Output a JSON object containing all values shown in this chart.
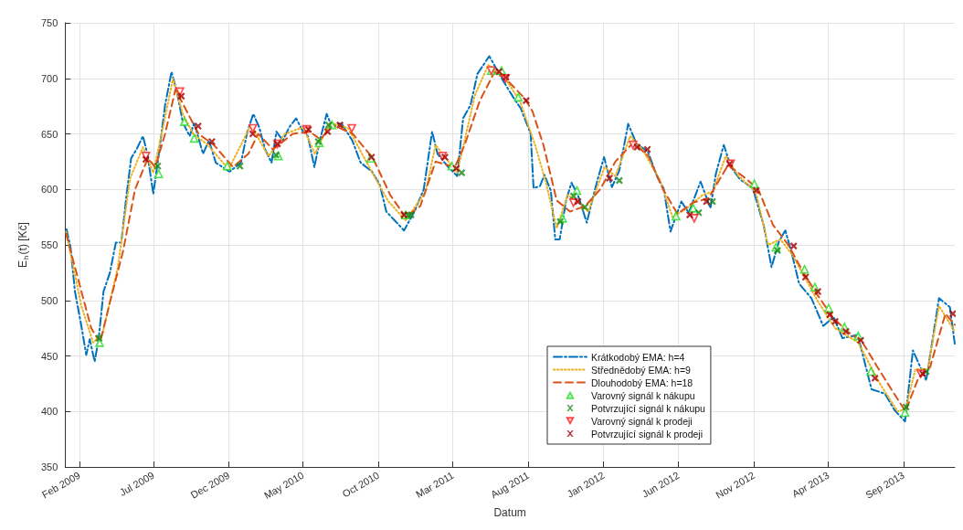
{
  "chart_data": {
    "type": "line",
    "xlabel": "Datum",
    "ylabel": "E$_{h}$(t) [Kč]",
    "xlim": [
      "2009-01-03",
      "2013-12-14"
    ],
    "ylim": [
      350,
      750
    ],
    "yticks": [
      350,
      400,
      450,
      500,
      550,
      600,
      650,
      700,
      750
    ],
    "xticks": [
      {
        "value": "2009-02-01",
        "label": "Feb 2009"
      },
      {
        "value": "2009-07-01",
        "label": "Jul 2009"
      },
      {
        "value": "2009-12-01",
        "label": "Dec 2009"
      },
      {
        "value": "2010-05-01",
        "label": "May 2010"
      },
      {
        "value": "2010-10-01",
        "label": "Oct 2010"
      },
      {
        "value": "2011-03-01",
        "label": "Mar 2011"
      },
      {
        "value": "2011-08-01",
        "label": "Aug 2011"
      },
      {
        "value": "2012-01-01",
        "label": "Jan 2012"
      },
      {
        "value": "2012-06-01",
        "label": "Jun 2012"
      },
      {
        "value": "2012-11-01",
        "label": "Nov 2012"
      },
      {
        "value": "2013-04-01",
        "label": "Apr 2013"
      },
      {
        "value": "2013-09-01",
        "label": "Sep 2013"
      }
    ],
    "grid": true,
    "legend": "bottom",
    "marker": "none",
    "series": [
      {
        "name": "Krátkodobý EMA: h=4",
        "line_style": "dashdot",
        "color": "#0072bd",
        "x": [
          "2009-01-06",
          "2009-01-14",
          "2009-01-23",
          "2009-02-05",
          "2009-02-15",
          "2009-02-22",
          "2009-03-04",
          "2009-03-12",
          "2009-03-22",
          "2009-04-04",
          "2009-04-16",
          "2009-04-27",
          "2009-05-08",
          "2009-05-17",
          "2009-05-28",
          "2009-06-10",
          "2009-06-19",
          "2009-07-01",
          "2009-07-10",
          "2009-07-25",
          "2009-08-07",
          "2009-08-18",
          "2009-08-30",
          "2009-09-13",
          "2009-09-22",
          "2009-10-10",
          "2009-10-22",
          "2009-11-05",
          "2009-12-03",
          "2009-12-26",
          "2010-01-08",
          "2010-01-20",
          "2010-02-01",
          "2010-02-13",
          "2010-02-26",
          "2010-03-08",
          "2010-03-21",
          "2010-04-03",
          "2010-04-17",
          "2010-05-01",
          "2010-05-11",
          "2010-05-24",
          "2010-06-04",
          "2010-06-18",
          "2010-06-29",
          "2010-07-17",
          "2010-08-09",
          "2010-08-26",
          "2010-09-18",
          "2010-10-04",
          "2010-10-17",
          "2010-11-03",
          "2010-11-22",
          "2010-12-13",
          "2011-01-01",
          "2011-01-18",
          "2011-01-29",
          "2011-02-20",
          "2011-03-10",
          "2011-03-22",
          "2011-04-06",
          "2011-04-20",
          "2011-05-14",
          "2011-06-11",
          "2011-07-03",
          "2011-07-17",
          "2011-08-06",
          "2011-08-12",
          "2011-08-25",
          "2011-09-03",
          "2011-09-16",
          "2011-09-25",
          "2011-10-04",
          "2011-10-17",
          "2011-10-28",
          "2011-11-10",
          "2011-11-28",
          "2011-12-09",
          "2011-12-20",
          "2012-01-02",
          "2012-01-18",
          "2012-02-02",
          "2012-02-20",
          "2012-03-08",
          "2012-03-31",
          "2012-04-21",
          "2012-05-02",
          "2012-05-16",
          "2012-05-27",
          "2012-06-07",
          "2012-06-22",
          "2012-07-16",
          "2012-08-05",
          "2012-08-16",
          "2012-09-01",
          "2012-09-16",
          "2012-10-04",
          "2012-10-30",
          "2012-11-21",
          "2012-12-07",
          "2012-12-22",
          "2013-01-04",
          "2013-01-18",
          "2013-02-01",
          "2013-02-26",
          "2013-03-22",
          "2013-04-12",
          "2013-04-30",
          "2013-05-31",
          "2013-06-28",
          "2013-07-25",
          "2013-08-14",
          "2013-09-04",
          "2013-09-20",
          "2013-10-17",
          "2013-11-12",
          "2013-12-04",
          "2013-12-14"
        ],
        "values": [
          564,
          548,
          508,
          477,
          451,
          465,
          445,
          465,
          508,
          525,
          552,
          552,
          596,
          628,
          636,
          648,
          632,
          596,
          624,
          676,
          706,
          688,
          660,
          648,
          660,
          632,
          644,
          624,
          616,
          624,
          652,
          668,
          656,
          636,
          624,
          652,
          644,
          656,
          664,
          652,
          648,
          620,
          644,
          668,
          656,
          660,
          644,
          624,
          616,
          604,
          580,
          572,
          563,
          580,
          600,
          652,
          632,
          620,
          612,
          664,
          676,
          704,
          720,
          698,
          682,
          673,
          650,
          601,
          603,
          613,
          599,
          555,
          555,
          590,
          606,
          595,
          570,
          590,
          609,
          629,
          602,
          617,
          659,
          641,
          634,
          609,
          601,
          562,
          576,
          589,
          579,
          607,
          583,
          614,
          640,
          620,
          609,
          601,
          568,
          530,
          553,
          563,
          541,
          515,
          502,
          477,
          485,
          466,
          469,
          420,
          416,
          401,
          391,
          455,
          428,
          502,
          494,
          461
        ]
      },
      {
        "name": "Střednědobý EMA: h=9",
        "line_style": "dotted",
        "color": "#edb120",
        "x": [
          "2009-01-05",
          "2009-02-05",
          "2009-03-01",
          "2009-03-20",
          "2009-04-20",
          "2009-05-15",
          "2009-06-10",
          "2009-07-01",
          "2009-07-25",
          "2009-08-10",
          "2009-08-30",
          "2009-09-20",
          "2009-10-20",
          "2009-12-01",
          "2010-01-15",
          "2010-02-20",
          "2010-03-25",
          "2010-05-01",
          "2010-05-25",
          "2010-06-25",
          "2010-08-01",
          "2010-09-10",
          "2010-10-20",
          "2010-11-25",
          "2011-01-05",
          "2011-01-25",
          "2011-03-10",
          "2011-04-15",
          "2011-05-12",
          "2011-06-10",
          "2011-07-15",
          "2011-08-15",
          "2011-09-05",
          "2011-09-28",
          "2011-10-20",
          "2011-11-12",
          "2011-12-01",
          "2012-01-03",
          "2012-01-25",
          "2012-02-24",
          "2012-03-20",
          "2012-04-25",
          "2012-05-20",
          "2012-06-15",
          "2012-07-20",
          "2012-08-10",
          "2012-09-05",
          "2012-10-01",
          "2012-11-05",
          "2012-11-30",
          "2012-12-25",
          "2013-01-20",
          "2013-03-10",
          "2013-04-15",
          "2013-06-01",
          "2013-07-15",
          "2013-08-20",
          "2013-09-05",
          "2013-09-25",
          "2013-10-20",
          "2013-11-12",
          "2013-12-14"
        ],
        "values": [
          562,
          495,
          462,
          470,
          530,
          610,
          638,
          615,
          665,
          700,
          668,
          650,
          640,
          618,
          658,
          630,
          650,
          656,
          632,
          660,
          655,
          622,
          590,
          572,
          598,
          640,
          615,
          685,
          712,
          703,
          680,
          640,
          608,
          565,
          595,
          588,
          580,
          620,
          612,
          648,
          636,
          608,
          575,
          582,
          595,
          598,
          630,
          612,
          598,
          550,
          555,
          540,
          500,
          475,
          462,
          425,
          400,
          402,
          438,
          438,
          495,
          472
        ]
      },
      {
        "name": "Dlouhodobý EMA: h=18",
        "line_style": "dashed",
        "color": "#d95319",
        "x": [
          "2009-01-05",
          "2009-02-01",
          "2009-02-25",
          "2009-03-15",
          "2009-04-05",
          "2009-05-01",
          "2009-05-25",
          "2009-06-20",
          "2009-07-05",
          "2009-07-25",
          "2009-08-15",
          "2009-09-05",
          "2009-10-01",
          "2009-11-01",
          "2009-12-10",
          "2010-01-10",
          "2010-01-30",
          "2010-03-01",
          "2010-04-10",
          "2010-05-15",
          "2010-06-05",
          "2010-07-01",
          "2010-08-10",
          "2010-09-20",
          "2010-10-25",
          "2010-11-25",
          "2010-12-25",
          "2011-01-25",
          "2011-03-05",
          "2011-03-25",
          "2011-04-25",
          "2011-05-25",
          "2011-06-20",
          "2011-07-25",
          "2011-08-10",
          "2011-09-01",
          "2011-09-28",
          "2011-10-25",
          "2011-11-25",
          "2011-12-25",
          "2012-01-25",
          "2012-03-01",
          "2012-04-01",
          "2012-05-01",
          "2012-05-30",
          "2012-06-30",
          "2012-08-01",
          "2012-09-10",
          "2012-10-15",
          "2012-11-10",
          "2012-12-10",
          "2013-01-10",
          "2013-02-10",
          "2013-03-10",
          "2013-04-10",
          "2013-05-10",
          "2013-06-10",
          "2013-07-10",
          "2013-08-10",
          "2013-09-05",
          "2013-10-01",
          "2013-10-25",
          "2013-11-25",
          "2013-12-14"
        ],
        "values": [
          560,
          515,
          475,
          462,
          500,
          545,
          600,
          628,
          620,
          650,
          690,
          672,
          650,
          640,
          620,
          632,
          650,
          636,
          650,
          652,
          645,
          658,
          650,
          628,
          595,
          575,
          585,
          625,
          620,
          640,
          680,
          706,
          698,
          682,
          670,
          640,
          590,
          580,
          585,
          600,
          625,
          642,
          630,
          600,
          578,
          588,
          592,
          622,
          610,
          600,
          568,
          550,
          525,
          505,
          485,
          472,
          462,
          440,
          418,
          400,
          430,
          440,
          488,
          478
        ]
      },
      {
        "name": "Varovný signál k nákupu",
        "type": "scatter",
        "marker": "triangle",
        "color": "#22dd22",
        "x": [
          "2009-03-14",
          "2009-07-12",
          "2009-09-02",
          "2009-09-22",
          "2009-11-28",
          "2010-03-12",
          "2010-06-03",
          "2010-06-29",
          "2010-09-15",
          "2010-11-25",
          "2011-02-27",
          "2011-05-18",
          "2011-06-08",
          "2011-07-12",
          "2011-10-10",
          "2011-11-08",
          "2012-05-27",
          "2012-07-01",
          "2012-11-02",
          "2012-12-16",
          "2013-02-12",
          "2013-03-05",
          "2013-04-02",
          "2013-05-04",
          "2013-06-01",
          "2013-06-27",
          "2013-09-04"
        ],
        "values": [
          462,
          614,
          661,
          646,
          621,
          630,
          642,
          658,
          628,
          577,
          621,
          707,
          707,
          683,
          574,
          599,
          576,
          583,
          605,
          548,
          528,
          512,
          493,
          476,
          468,
          436,
          399
        ]
      },
      {
        "name": "Potvrzující signál k nákupu",
        "type": "scatter",
        "marker": "cross",
        "color": "#168a16",
        "x": [
          "2009-03-13",
          "2009-07-10",
          "2009-12-24",
          "2010-03-07",
          "2010-06-01",
          "2010-06-22",
          "2010-11-30",
          "2010-12-06",
          "2011-03-19",
          "2011-10-05",
          "2011-11-01",
          "2011-11-24",
          "2012-02-02",
          "2012-07-12",
          "2012-08-09",
          "2012-12-19",
          "2013-09-06",
          "2013-10-17"
        ],
        "values": [
          466,
          621,
          621,
          631,
          643,
          658,
          577,
          577,
          615,
          571,
          594,
          584,
          608,
          579,
          589,
          545,
          404,
          436
        ]
      },
      {
        "name": "Varovný signál k prodeji",
        "type": "scatter",
        "marker": "triangle-down",
        "color": "#ff1a1a",
        "x": [
          "2009-06-16",
          "2009-08-24",
          "2010-01-19",
          "2010-03-10",
          "2010-05-08",
          "2010-08-08",
          "2011-02-08",
          "2011-05-18",
          "2011-06-16",
          "2011-11-01",
          "2012-03-01",
          "2012-07-03",
          "2012-09-15",
          "2013-10-06"
        ],
        "values": [
          630,
          688,
          655,
          641,
          654,
          655,
          630,
          707,
          700,
          588,
          640,
          574,
          623,
          434
        ]
      },
      {
        "name": "Potvrzující signál k prodeji",
        "type": "scatter",
        "marker": "cross",
        "color": "#a50000",
        "x": [
          "2009-06-16",
          "2009-08-27",
          "2009-09-30",
          "2009-10-28",
          "2010-01-19",
          "2010-03-10",
          "2010-05-12",
          "2010-06-20",
          "2010-07-15",
          "2010-09-17",
          "2010-11-22",
          "2011-02-13",
          "2011-03-08",
          "2011-06-03",
          "2011-06-17",
          "2011-07-28",
          "2011-11-10",
          "2012-01-13",
          "2012-03-09",
          "2012-03-30",
          "2012-06-24",
          "2012-07-28",
          "2012-09-13",
          "2012-11-06",
          "2013-01-21",
          "2013-02-14",
          "2013-03-11",
          "2013-04-04",
          "2013-04-15",
          "2013-05-07",
          "2013-06-06",
          "2013-07-05",
          "2013-10-10",
          "2013-12-10"
        ],
        "values": [
          627,
          684,
          657,
          643,
          650,
          641,
          654,
          652,
          658,
          629,
          577,
          629,
          619,
          706,
          701,
          680,
          589,
          610,
          638,
          636,
          577,
          589,
          623,
          599,
          549,
          521,
          508,
          487,
          481,
          472,
          464,
          430,
          434,
          488
        ]
      }
    ]
  }
}
